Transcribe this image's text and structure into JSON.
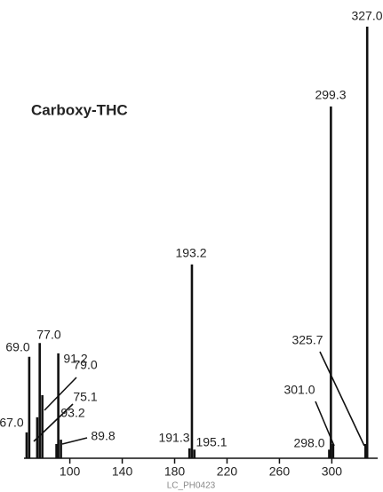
{
  "chart_data": {
    "type": "stem",
    "title": "Carboxy-THC",
    "footer": "LC_PH0423",
    "x": [
      67.0,
      69.0,
      75.1,
      77.0,
      79.0,
      89.8,
      91.2,
      93.2,
      191.3,
      193.2,
      195.1,
      298.0,
      299.3,
      301.0,
      325.7,
      327.0
    ],
    "x_labels": [
      "67.0",
      "69.0",
      "75.1",
      "77.0",
      "79.0",
      "89.8",
      "91.2",
      "93.2",
      "191.3",
      "193.2",
      "195.1",
      "298.0",
      "299.3",
      "301.0",
      "325.7",
      "327.0"
    ],
    "values": [
      6,
      23.5,
      9.5,
      26.7,
      14.6,
      3.3,
      24.3,
      4.3,
      2.3,
      44.9,
      2,
      2,
      81.5,
      3.3,
      3.3,
      100
    ],
    "color": "#111111",
    "xlim": [
      65,
      335
    ],
    "xticks": [
      100,
      140,
      180,
      220,
      260,
      300
    ],
    "ylim": [
      0,
      100
    ]
  }
}
